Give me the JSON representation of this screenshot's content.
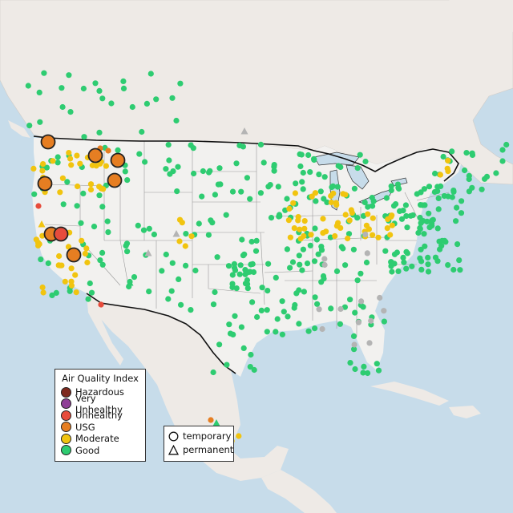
{
  "map": {
    "colors": {
      "water": "#c7dcea",
      "land": "#eeeae6",
      "usa": "#f2f1ef",
      "border": "#111111",
      "states": "#9a9a9a",
      "hazardous": "#7e2a1e",
      "very_unhealthy": "#8f3f97",
      "unhealthy": "#e74c3c",
      "usg": "#e67e22",
      "moderate": "#f1c40f",
      "good": "#2ecc71",
      "grey": "#b4b4b4"
    }
  },
  "legend": {
    "title": "Air Quality Index",
    "items": [
      {
        "label": "Hazardous",
        "color": "#7e2a1e"
      },
      {
        "label": "Very Unhealthy",
        "color": "#8f3f97"
      },
      {
        "label": "Unhealthy",
        "color": "#e74c3c"
      },
      {
        "label": "USG",
        "color": "#e67e22"
      },
      {
        "label": "Moderate",
        "color": "#f1c40f"
      },
      {
        "label": "Good",
        "color": "#2ecc71"
      }
    ],
    "shapes": [
      {
        "label": "temporary",
        "icon": "circle-icon"
      },
      {
        "label": "permanent",
        "icon": "triangle-icon"
      }
    ]
  }
}
